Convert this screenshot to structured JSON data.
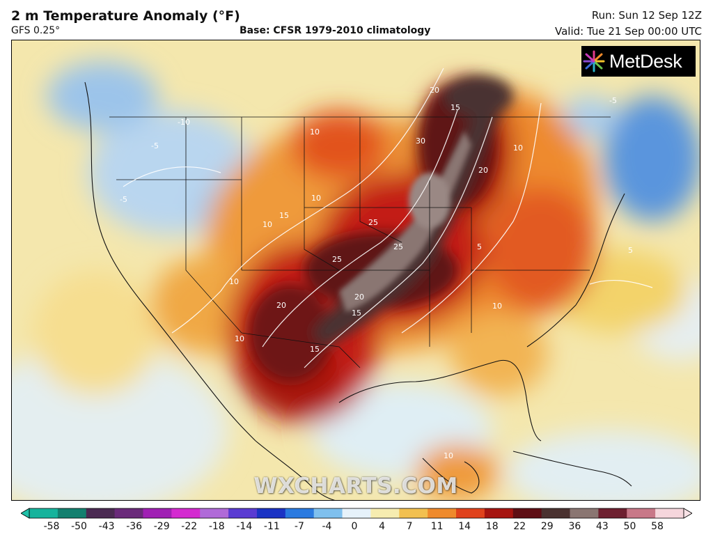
{
  "header": {
    "title": "2 m Temperature Anomaly (°F)",
    "model": "GFS 0.25°",
    "base": "Base: CFSR 1979-2010 climatology",
    "run": "Run: Sun 12 Sep 12Z",
    "valid": "Valid: Tue 21 Sep 00:00 UTC"
  },
  "brand": {
    "name": "MetDesk",
    "icon": "asterisk-burst-icon"
  },
  "watermark": "WXCHARTS.COM",
  "legend": {
    "ticks": [
      "-58",
      "-50",
      "-43",
      "-36",
      "-29",
      "-22",
      "-18",
      "-14",
      "-11",
      "-7",
      "-4",
      "0",
      "4",
      "7",
      "11",
      "14",
      "18",
      "22",
      "29",
      "36",
      "43",
      "50",
      "58"
    ],
    "colors": [
      "#16b39c",
      "#13806f",
      "#4b2a52",
      "#6a2a7a",
      "#a020b4",
      "#d42ad0",
      "#b06ad8",
      "#5a3bd2",
      "#1b33c4",
      "#2a7ae0",
      "#7fc0ee",
      "#e6f2fa",
      "#f6ecb0",
      "#f2c050",
      "#ef8a2c",
      "#e0421c",
      "#a61410",
      "#5e0e14",
      "#4a3230",
      "#8a7672",
      "#6e2030",
      "#c87888",
      "#f5d6dc"
    ]
  },
  "map": {
    "region": "North America",
    "contour_labels": [
      "5",
      "10",
      "15",
      "20",
      "25",
      "30",
      "-5",
      "-10"
    ]
  }
}
